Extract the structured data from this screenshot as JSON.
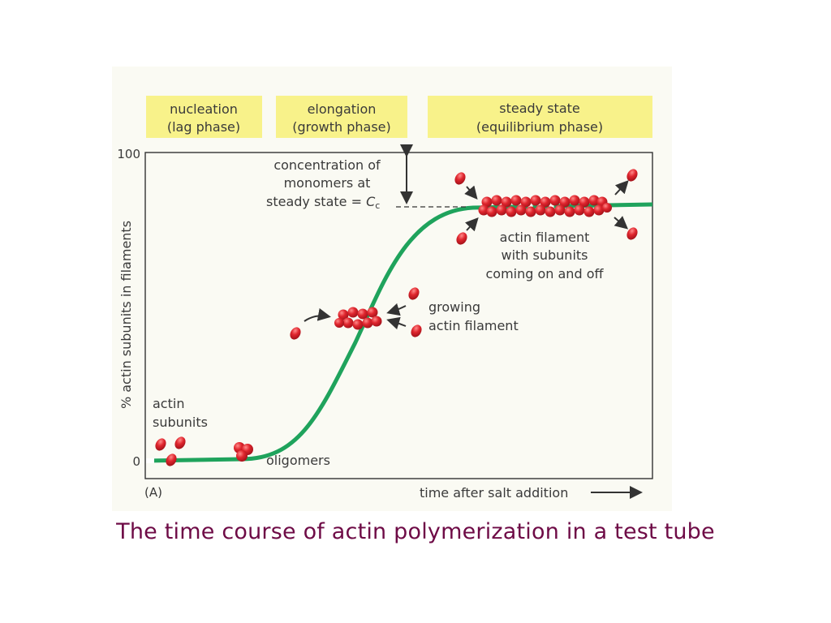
{
  "phases": {
    "nucleation": [
      "nucleation",
      "(lag phase)"
    ],
    "elongation": [
      "elongation",
      "(growth phase)"
    ],
    "steady": [
      "steady state",
      "(equilibrium phase)"
    ]
  },
  "axis": {
    "y_label": "% actin subunits in filaments",
    "y_max": "100",
    "y_min": "0",
    "x_label": "time after salt addition",
    "panel": "(A)"
  },
  "annotations": {
    "cc_lines": [
      "concentration of",
      "monomers at",
      "steady state = "
    ],
    "cc_symbol": "C",
    "cc_sub": "c",
    "actin_subunits": [
      "actin",
      "subunits"
    ],
    "oligomers": "oligomers",
    "growing": [
      "growing",
      "actin filament"
    ],
    "steady_filament": [
      "actin filament",
      "with subunits",
      "coming on and off"
    ]
  },
  "colors": {
    "curve": "#1fa35c",
    "phase_box": "#f8f28a",
    "subunit": "#d9232e",
    "caption": "#6e0b46"
  },
  "caption": "The time course of actin polymerization in a test tube"
}
